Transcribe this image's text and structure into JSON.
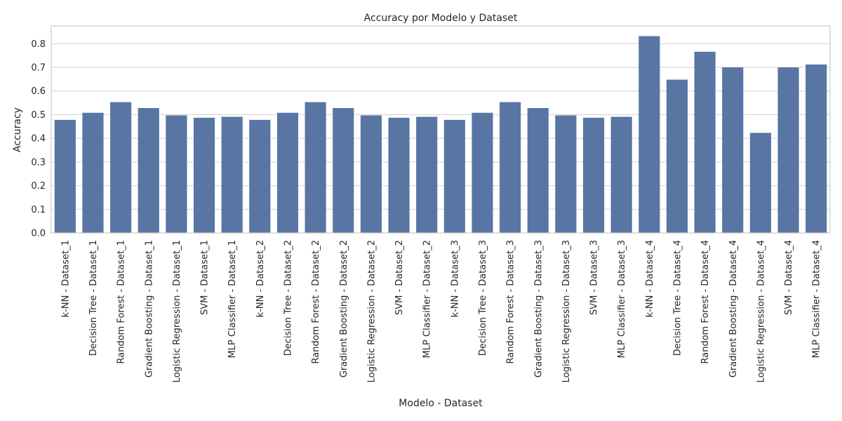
{
  "chart_data": {
    "type": "bar",
    "title": "Accuracy por Modelo y Dataset",
    "xlabel": "Modelo - Dataset",
    "ylabel": "Accuracy",
    "ylim": [
      0,
      0.875
    ],
    "yticks": [
      "0.0",
      "0.1",
      "0.2",
      "0.3",
      "0.4",
      "0.5",
      "0.6",
      "0.7",
      "0.8"
    ],
    "grid": true,
    "bar_color": "#5875a4",
    "categories": [
      "k-NN - Dataset_1",
      "Decision Tree - Dataset_1",
      "Random Forest - Dataset_1",
      "Gradient Boosting - Dataset_1",
      "Logistic Regression - Dataset_1",
      "SVM - Dataset_1",
      "MLP Classifier - Dataset_1",
      "k-NN - Dataset_2",
      "Decision Tree - Dataset_2",
      "Random Forest - Dataset_2",
      "Gradient Boosting - Dataset_2",
      "Logistic Regression - Dataset_2",
      "SVM - Dataset_2",
      "MLP Classifier - Dataset_2",
      "k-NN - Dataset_3",
      "Decision Tree - Dataset_3",
      "Random Forest - Dataset_3",
      "Gradient Boosting - Dataset_3",
      "Logistic Regression - Dataset_3",
      "SVM - Dataset_3",
      "MLP Classifier - Dataset_3",
      "k-NN - Dataset_4",
      "Decision Tree - Dataset_4",
      "Random Forest - Dataset_4",
      "Gradient Boosting - Dataset_4",
      "Logistic Regression - Dataset_4",
      "SVM - Dataset_4",
      "MLP Classifier - Dataset_4"
    ],
    "values": [
      0.478,
      0.508,
      0.553,
      0.528,
      0.497,
      0.487,
      0.491,
      0.478,
      0.508,
      0.553,
      0.528,
      0.497,
      0.487,
      0.491,
      0.478,
      0.508,
      0.553,
      0.528,
      0.497,
      0.487,
      0.491,
      0.832,
      0.648,
      0.766,
      0.7,
      0.423,
      0.7,
      0.712
    ]
  }
}
